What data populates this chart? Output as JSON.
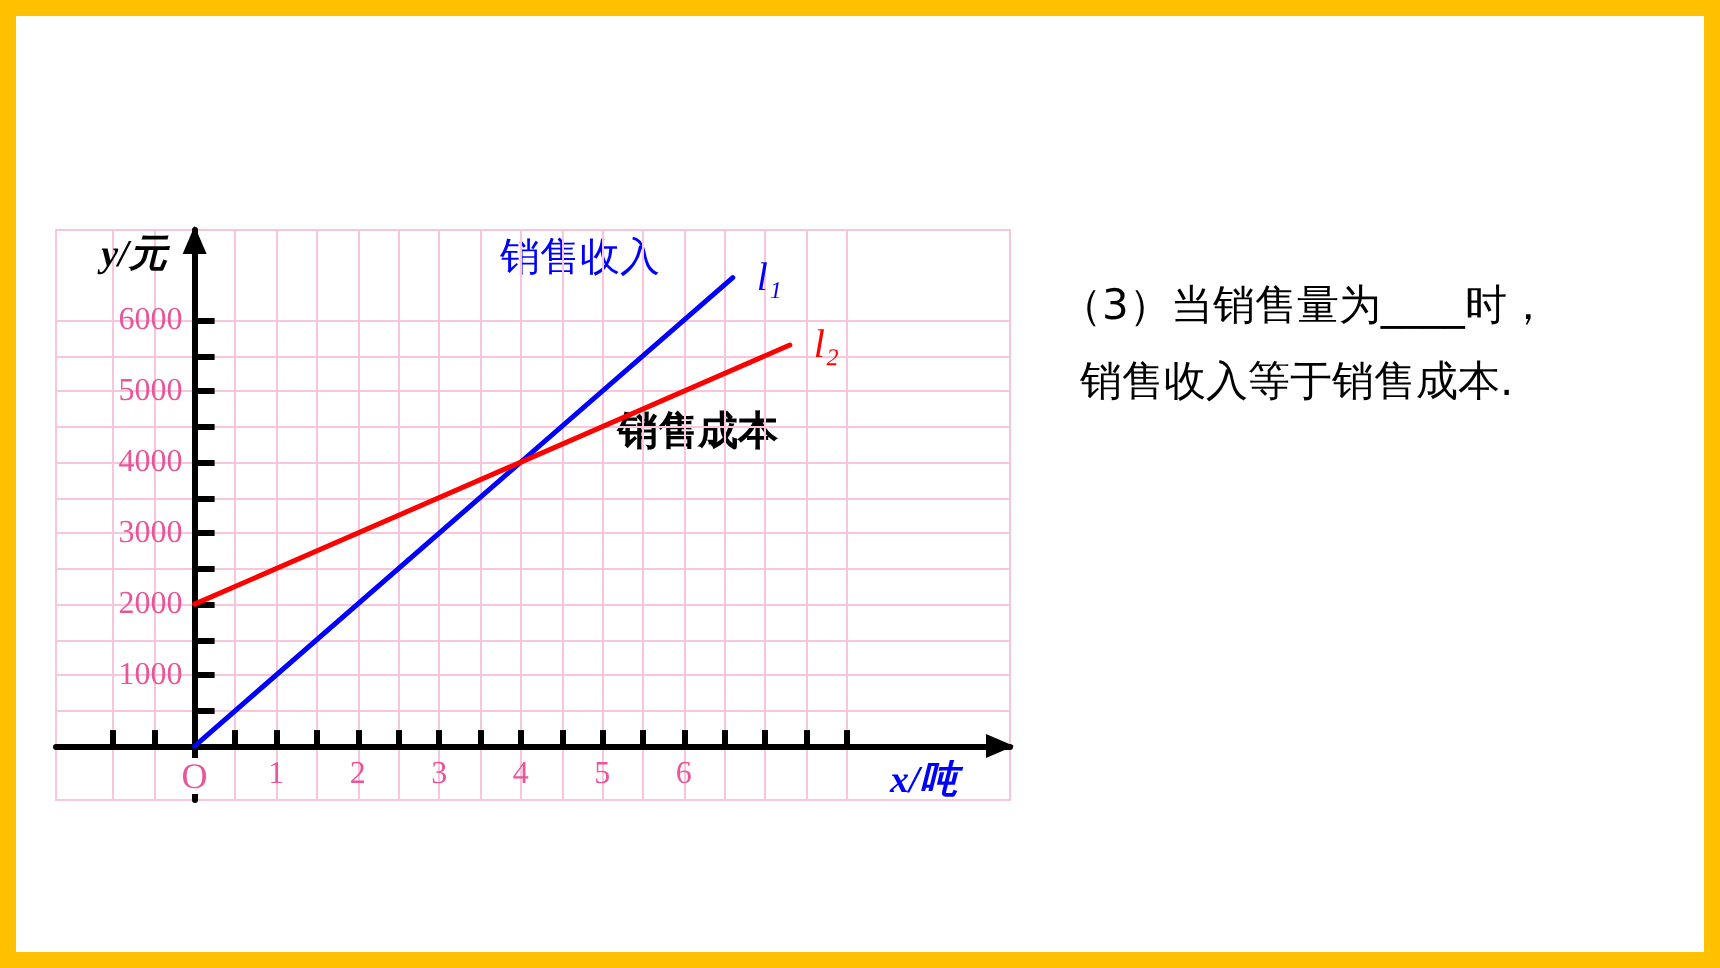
{
  "chart_data": {
    "type": "line",
    "xlabel": "x/吨",
    "ylabel": "y/元",
    "xlim": [
      -1.7,
      10
    ],
    "ylim": [
      -760,
      7270
    ],
    "xticks": [
      {
        "value": -1,
        "label": null
      },
      {
        "value": 0,
        "label": "O"
      },
      1,
      2,
      3,
      4,
      5,
      6,
      {
        "value": 7,
        "label": null
      },
      {
        "value": 8,
        "label": null
      }
    ],
    "yticks": [
      {
        "value": 0,
        "label": null
      },
      1000,
      2000,
      3000,
      4000,
      5000,
      6000
    ],
    "series": [
      {
        "name": "l₁",
        "color": "#0000ff",
        "x": [
          0,
          6.6
        ],
        "values": [
          0,
          6600
        ]
      },
      {
        "name": "l₂",
        "color": "#ff0000",
        "x": [
          0,
          7.3
        ],
        "values": [
          2000,
          5650
        ]
      }
    ],
    "annotations": [
      "销售收入",
      "销售成本",
      "（3）当销售量为____时，",
      "销售收入等于销售成本."
    ],
    "grid": true,
    "legend": false,
    "marker": "none",
    "line_style": "solid"
  }
}
